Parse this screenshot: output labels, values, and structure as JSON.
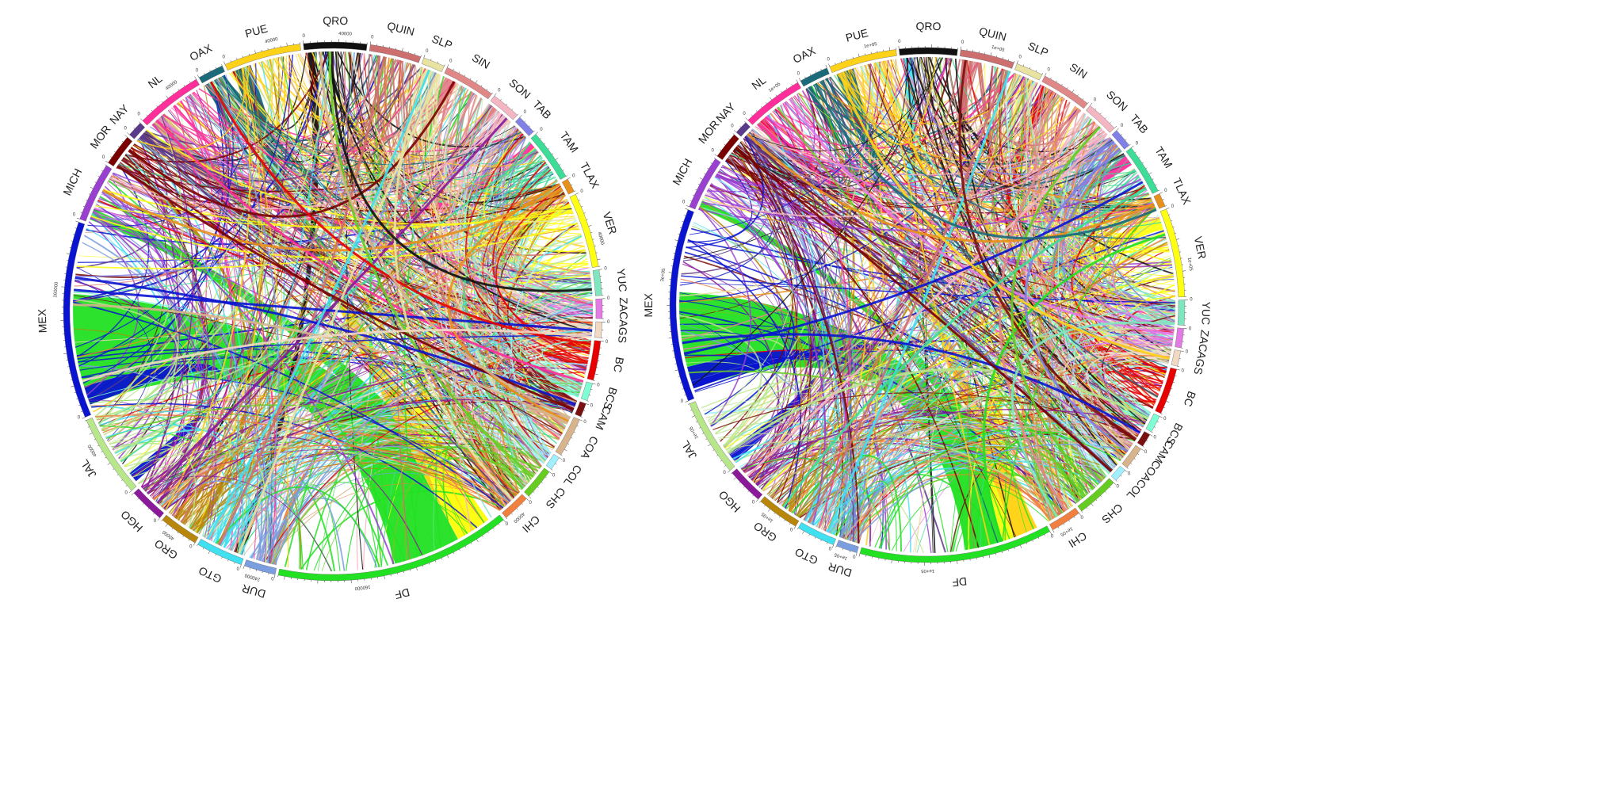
{
  "segments": [
    {
      "key": "QRO",
      "label": "QRO",
      "color": "#111111"
    },
    {
      "key": "QUIN",
      "label": "QUIN",
      "color": "#cd6f6f"
    },
    {
      "key": "SLP",
      "label": "SLP",
      "color": "#e8e3a0"
    },
    {
      "key": "SIN",
      "label": "SIN",
      "color": "#e08888"
    },
    {
      "key": "SON",
      "label": "SON",
      "color": "#f4b6c2"
    },
    {
      "key": "TAB",
      "label": "TAB",
      "color": "#8080e6"
    },
    {
      "key": "TAM",
      "label": "TAM",
      "color": "#3ddc97"
    },
    {
      "key": "TLAX",
      "label": "TLAX",
      "color": "#e8901c"
    },
    {
      "key": "VER",
      "label": "VER",
      "color": "#ffff14"
    },
    {
      "key": "YUC",
      "label": "YUC",
      "color": "#7fe7c0"
    },
    {
      "key": "ZAC",
      "label": "ZAC",
      "color": "#e47ae4"
    },
    {
      "key": "AGS",
      "label": "AGS",
      "color": "#f2d9c4"
    },
    {
      "key": "BC",
      "label": "BC",
      "color": "#e80000"
    },
    {
      "key": "BCS",
      "label": "BCS",
      "color": "#7fffd4"
    },
    {
      "key": "CAM",
      "label": "CAM",
      "color": "#7a1010"
    },
    {
      "key": "COA",
      "label": "COA",
      "color": "#d8b48c"
    },
    {
      "key": "COL",
      "label": "COL",
      "color": "#a0f0ff"
    },
    {
      "key": "CHS",
      "label": "CHS",
      "color": "#66cc22"
    },
    {
      "key": "CHI",
      "label": "CHI",
      "color": "#f08040"
    },
    {
      "key": "DF",
      "label": "DF",
      "color": "#22e022"
    },
    {
      "key": "DUR",
      "label": "DUR",
      "color": "#7a9ee0"
    },
    {
      "key": "GTO",
      "label": "GTO",
      "color": "#40e0f0"
    },
    {
      "key": "GRO",
      "label": "GRO",
      "color": "#b8860b"
    },
    {
      "key": "HGO",
      "label": "HGO",
      "color": "#8a1a9a"
    },
    {
      "key": "JAL",
      "label": "JAL",
      "color": "#b8e68a"
    },
    {
      "key": "MEX",
      "label": "MEX",
      "color": "#0a14d0"
    },
    {
      "key": "MICH",
      "label": "MICH",
      "color": "#9a40d0"
    },
    {
      "key": "MOR",
      "label": "MOR",
      "color": "#7a0000"
    },
    {
      "key": "NAY",
      "label": "NAY",
      "color": "#5a3a8a"
    },
    {
      "key": "NL",
      "label": "NL",
      "color": "#ff2e9a"
    },
    {
      "key": "OAX",
      "label": "OAX",
      "color": "#1a6a7a"
    },
    {
      "key": "PUE",
      "label": "PUE",
      "color": "#ffd21a"
    }
  ],
  "diagrams": [
    {
      "name": "left",
      "weights": [
        3.2,
        2.6,
        1.1,
        2.6,
        1.5,
        1.0,
        2.6,
        0.7,
        3.8,
        1.3,
        1.0,
        0.8,
        2.0,
        0.9,
        0.7,
        2.0,
        0.7,
        1.6,
        1.4,
        12.0,
        1.6,
        2.4,
        2.0,
        1.8,
        4.2,
        10.0,
        3.0,
        1.6,
        0.8,
        3.4,
        1.3,
        3.9
      ],
      "hubs": [
        {
          "from": "DF",
          "to": "MEX",
          "share": 0.45
        },
        {
          "from": "DF",
          "to": "MICH",
          "share": 0.15
        },
        {
          "from": "MEX",
          "to": "JAL",
          "share": 0.1
        },
        {
          "from": "PUE",
          "to": "DF",
          "share": 0.12
        },
        {
          "from": "VER",
          "to": "DF",
          "share": 0.12
        },
        {
          "from": "NL",
          "to": "TAM",
          "share": 0.2
        },
        {
          "from": "QRO",
          "to": "GTO",
          "share": 0.15
        },
        {
          "from": "BC",
          "to": "SON",
          "share": 0.2
        },
        {
          "from": "OAX",
          "to": "PUE",
          "share": 0.2
        },
        {
          "from": "SIN",
          "to": "SON",
          "share": 0.25
        },
        {
          "from": "COA",
          "to": "NL",
          "share": 0.2
        },
        {
          "from": "CHI",
          "to": "DUR",
          "share": 0.15
        },
        {
          "from": "GRO",
          "to": "MOR",
          "share": 0.15
        }
      ],
      "ticks": {
        "QRO": "40000",
        "PUE": "40000",
        "NL": "40000",
        "MEX": "160000",
        "JAL": "40000",
        "GRO": "40000",
        "DUR": "240000",
        "DF": "160000",
        "CHI": "40000",
        "VER": "40000"
      }
    },
    {
      "name": "right",
      "weights": [
        3.0,
        2.8,
        1.4,
        2.6,
        1.7,
        1.0,
        2.6,
        0.7,
        4.6,
        1.3,
        1.0,
        0.8,
        2.4,
        0.9,
        0.7,
        1.2,
        0.7,
        2.2,
        1.6,
        10.0,
        1.1,
        2.0,
        2.2,
        1.9,
        4.0,
        10.0,
        2.8,
        1.4,
        0.7,
        3.2,
        1.5,
        3.5
      ],
      "hubs": [
        {
          "from": "DF",
          "to": "MEX",
          "share": 0.4
        },
        {
          "from": "DF",
          "to": "MICH",
          "share": 0.12
        },
        {
          "from": "MEX",
          "to": "JAL",
          "share": 0.12
        },
        {
          "from": "VER",
          "to": "DF",
          "share": 0.15
        },
        {
          "from": "PUE",
          "to": "DF",
          "share": 0.1
        },
        {
          "from": "BC",
          "to": "SIN",
          "share": 0.2
        },
        {
          "from": "NL",
          "to": "TAM",
          "share": 0.18
        },
        {
          "from": "OAX",
          "to": "PUE",
          "share": 0.2
        },
        {
          "from": "QUIN",
          "to": "YUC",
          "share": 0.2
        },
        {
          "from": "CHS",
          "to": "TAB",
          "share": 0.2
        },
        {
          "from": "GTO",
          "to": "QRO",
          "share": 0.15
        },
        {
          "from": "MEX",
          "to": "BC",
          "share": 0.04
        }
      ],
      "ticks": {
        "PUE": "1e+05",
        "QUIN": "1e+05",
        "NL": "1e+05",
        "MEX": "3e+05",
        "JAL": "1e+05",
        "GRO": "1e+05",
        "DUR": "1e+05",
        "DF": "1e+05",
        "CHI": "1e+05",
        "VER": "1e+05"
      }
    }
  ]
}
